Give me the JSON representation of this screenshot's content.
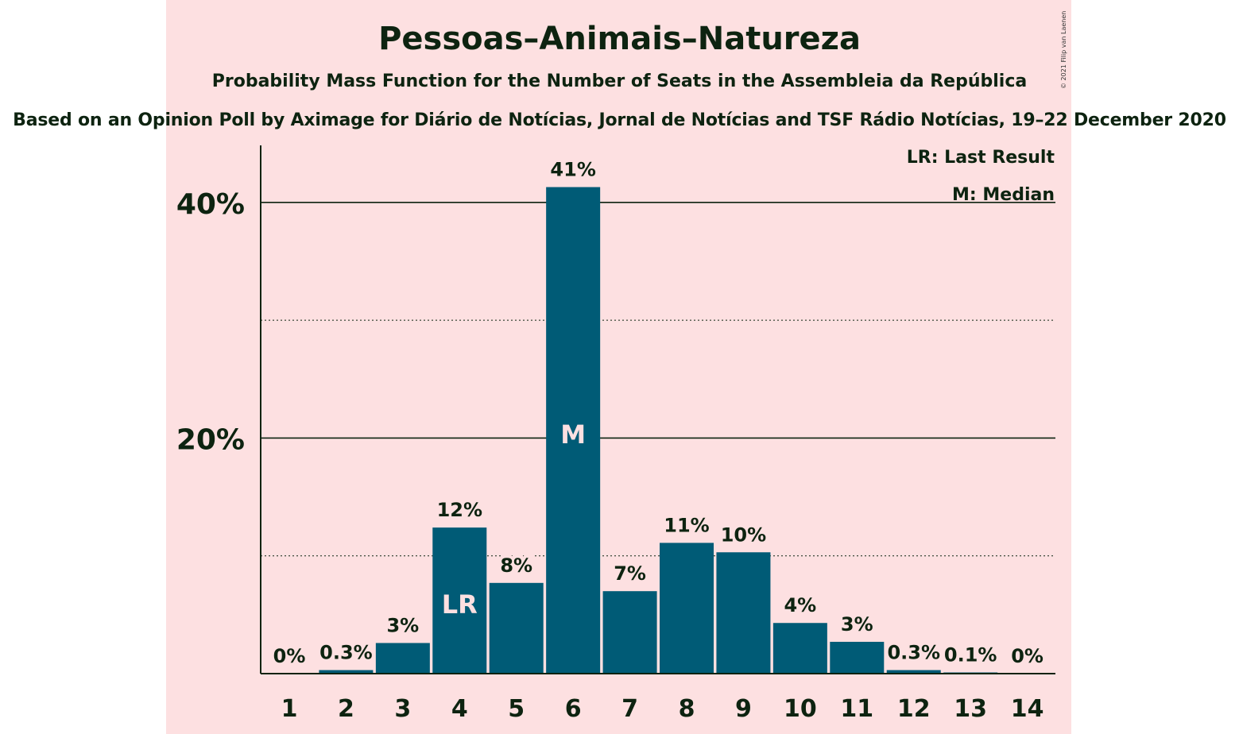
{
  "header": {
    "title": "Pessoas–Animais–Natureza",
    "subtitle": "Probability Mass Function for the Number of Seats in the Assembleia da República",
    "source": "Based on an Opinion Poll by Aximage for Diário de Notícias, Jornal de Notícias and TSF Rádio Notícias, 19–22 December 2020",
    "copyright": "© 2021 Filip van Laenen"
  },
  "legend": {
    "last_result": "LR: Last Result",
    "median": "M: Median"
  },
  "colors": {
    "background": "#fde0e1",
    "bar": "#005b76",
    "text": "#0d2310",
    "marker_text": "#fde0e1"
  },
  "chart_data": {
    "type": "bar",
    "categories": [
      "1",
      "2",
      "3",
      "4",
      "5",
      "6",
      "7",
      "8",
      "9",
      "10",
      "11",
      "12",
      "13",
      "14"
    ],
    "values": [
      0,
      0.3,
      2.6,
      12.4,
      7.7,
      41.3,
      7.0,
      11.1,
      10.3,
      4.3,
      2.7,
      0.3,
      0.1,
      0
    ],
    "data_labels": [
      "0%",
      "0.3%",
      "3%",
      "12%",
      "8%",
      "41%",
      "7%",
      "11%",
      "10%",
      "4%",
      "3%",
      "0.3%",
      "0.1%",
      "0%"
    ],
    "markers": [
      {
        "category": "4",
        "label": "LR"
      },
      {
        "category": "6",
        "label": "M"
      }
    ],
    "y_ticks": [
      {
        "value": 20,
        "label": "20%"
      },
      {
        "value": 40,
        "label": "40%"
      }
    ],
    "minor_gridlines": [
      10,
      30
    ],
    "ylim": [
      0,
      45
    ],
    "grid": true,
    "legend_position": "top-right"
  }
}
